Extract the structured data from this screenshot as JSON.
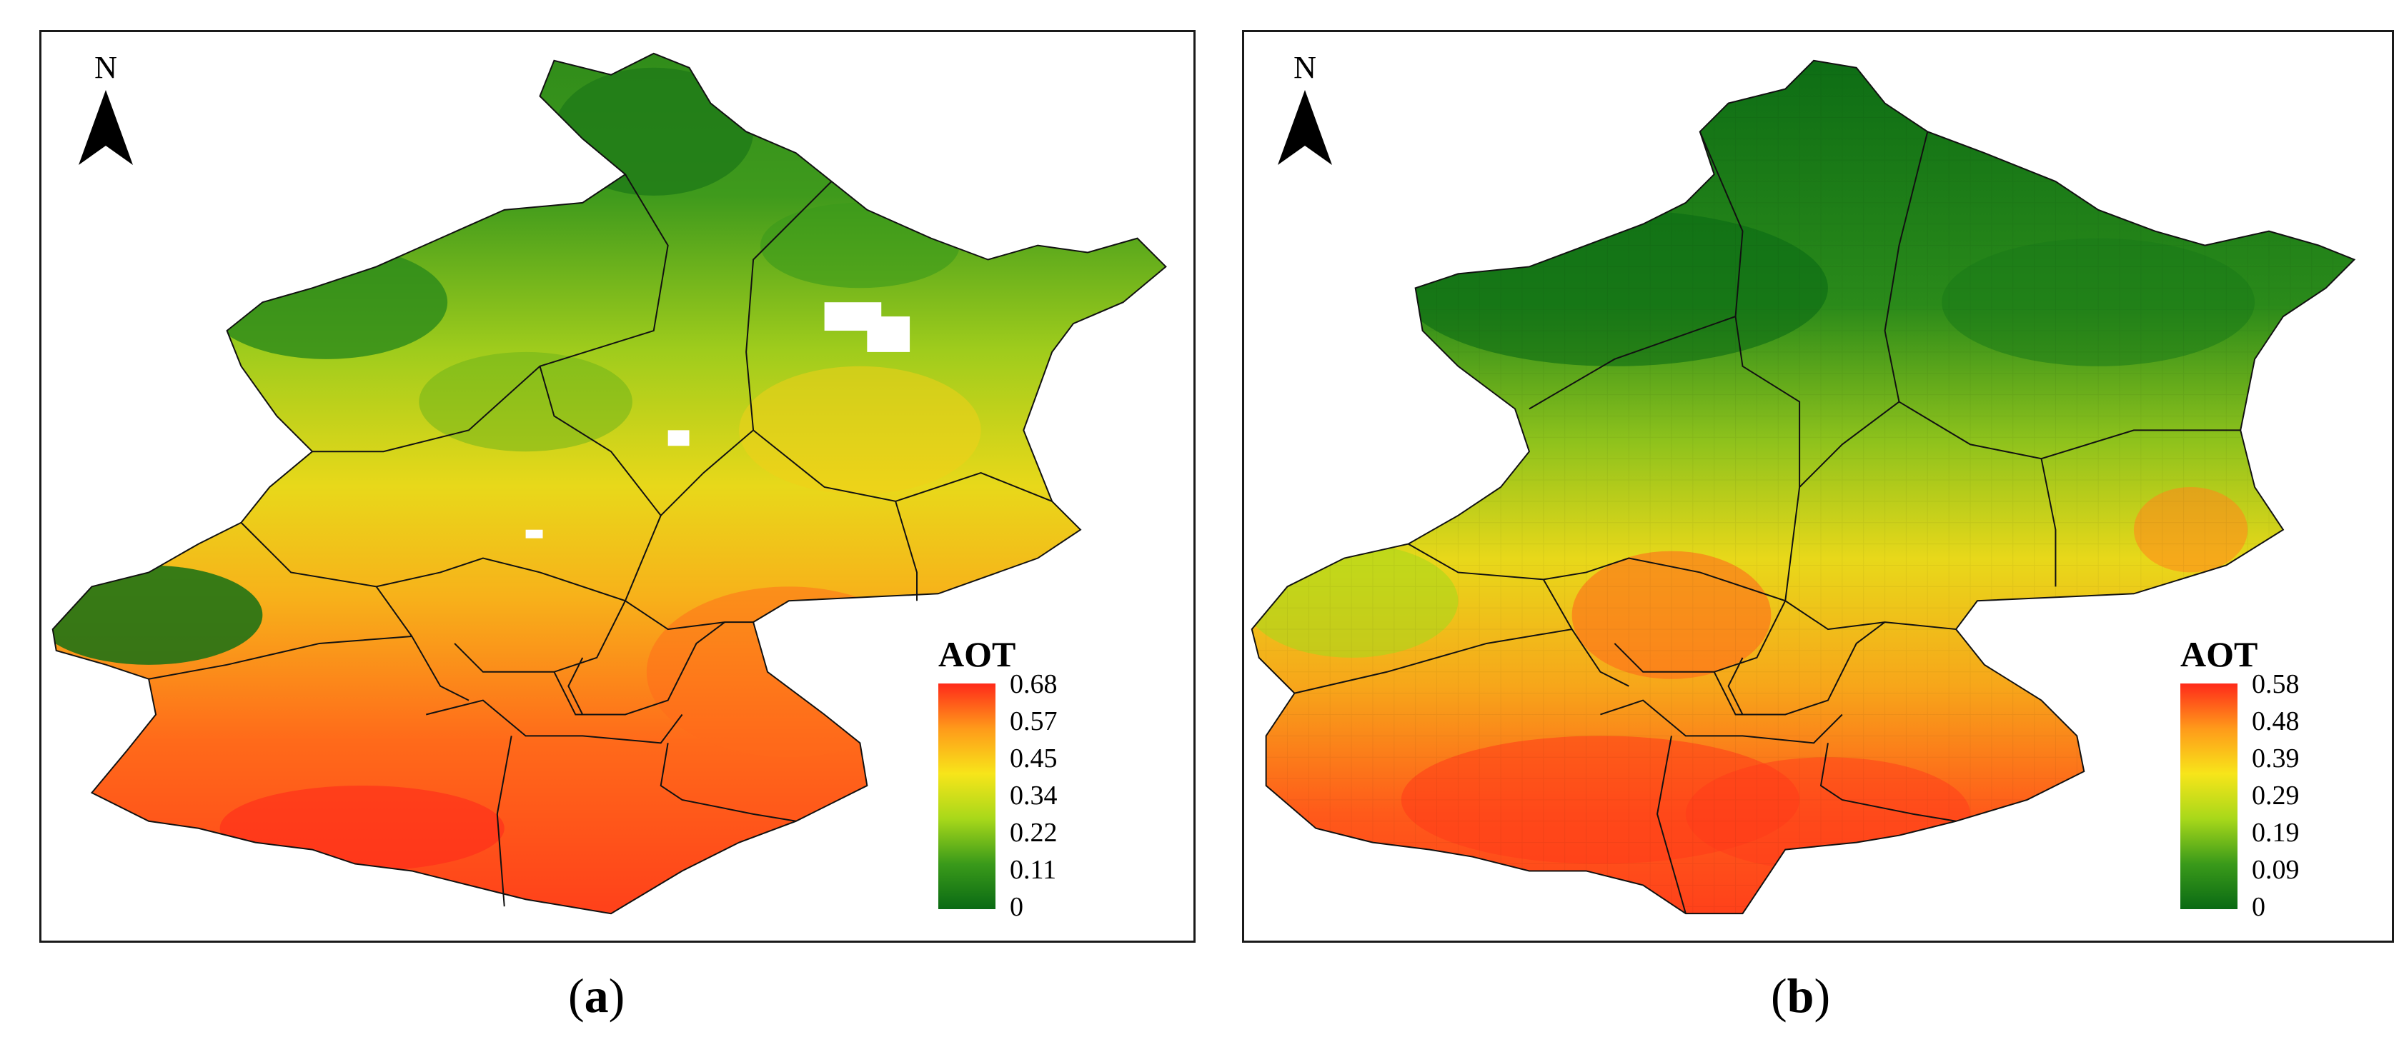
{
  "panels": [
    {
      "id": "a",
      "north_label": "N",
      "legend": {
        "title": "AOT",
        "ticks": [
          "0.68",
          "0.57",
          "0.45",
          "0.34",
          "0.22",
          "0.11",
          "0"
        ],
        "colors": [
          "#ff2a1a",
          "#ff9a1a",
          "#f7e51a",
          "#a8d81a",
          "#3a9a1a",
          "#0a6a14"
        ]
      },
      "caption_open": "(",
      "caption_letter": "a",
      "caption_close": ")"
    },
    {
      "id": "b",
      "north_label": "N",
      "legend": {
        "title": "AOT",
        "ticks": [
          "0.58",
          "0.48",
          "0.39",
          "0.29",
          "0.19",
          "0.09",
          "0"
        ],
        "colors": [
          "#ff2a1a",
          "#ff9a1a",
          "#f7e51a",
          "#a8d81a",
          "#3a9a1a",
          "#0a6a14"
        ]
      },
      "caption_open": "(",
      "caption_letter": "b",
      "caption_close": ")"
    }
  ]
}
